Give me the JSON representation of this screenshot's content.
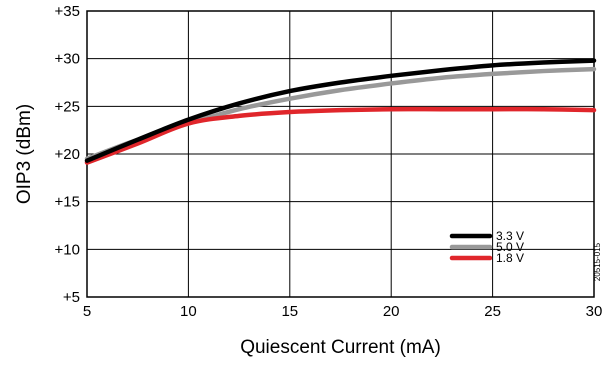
{
  "chart_data": {
    "type": "line",
    "xlabel": "Quiescent Current (mA)",
    "ylabel": "OIP3 (dBm)",
    "xlim": [
      5,
      30
    ],
    "ylim": [
      5,
      35
    ],
    "x_ticks": [
      "5",
      "10",
      "15",
      "20",
      "25",
      "30"
    ],
    "y_ticks": [
      "+5",
      "+10",
      "+15",
      "+20",
      "+25",
      "+30",
      "+35"
    ],
    "grid": true,
    "legend_position": "bottom-right",
    "x": [
      5,
      7.5,
      10,
      12.5,
      15,
      17.5,
      20,
      22.5,
      25,
      27.5,
      30
    ],
    "series": [
      {
        "name": "3.3 V",
        "color": "#000000",
        "values": [
          19.3,
          21.5,
          23.6,
          25.3,
          26.6,
          27.5,
          28.2,
          28.8,
          29.3,
          29.6,
          29.8
        ]
      },
      {
        "name": "5.0 V",
        "color": "#999999",
        "values": [
          19.5,
          21.5,
          23.2,
          24.7,
          25.8,
          26.7,
          27.4,
          28.0,
          28.4,
          28.7,
          28.9
        ]
      },
      {
        "name": "1.8 V",
        "color": "#e0262b",
        "values": [
          19.1,
          21.1,
          23.2,
          24.0,
          24.4,
          24.6,
          24.7,
          24.7,
          24.7,
          24.7,
          24.6
        ]
      }
    ]
  },
  "figure_code": "20515-015"
}
